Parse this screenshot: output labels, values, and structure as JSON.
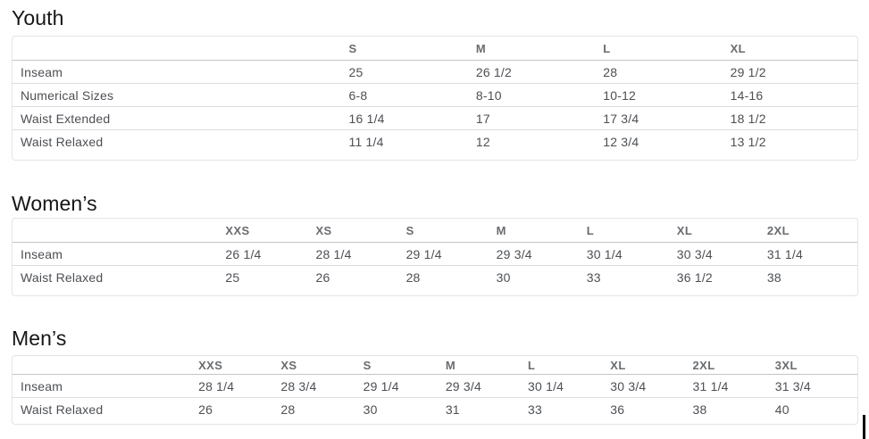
{
  "colors": {
    "heading_text": "#161616",
    "header_text": "#696c70",
    "cell_text": "#4c4f54",
    "table_border": "#e4e4e6",
    "row_divider": "#dcdcde"
  },
  "sections": [
    {
      "title": "Youth",
      "columns": [
        "S",
        "M",
        "L",
        "XL"
      ],
      "rows": [
        {
          "label": "Inseam",
          "values": [
            "25",
            "26 1/2",
            "28",
            "29 1/2"
          ]
        },
        {
          "label": "Numerical Sizes",
          "values": [
            "6-8",
            "8-10",
            "10-12",
            "14-16"
          ]
        },
        {
          "label": "Waist Extended",
          "values": [
            "16 1/4",
            "17",
            "17 3/4",
            "18 1/2"
          ]
        },
        {
          "label": "Waist Relaxed",
          "values": [
            "11 1/4",
            "12",
            "12 3/4",
            "13 1/2"
          ]
        }
      ]
    },
    {
      "title": "Women’s",
      "columns": [
        "XXS",
        "XS",
        "S",
        "M",
        "L",
        "XL",
        "2XL"
      ],
      "rows": [
        {
          "label": "Inseam",
          "values": [
            "26 1/4",
            "28 1/4",
            "29 1/4",
            "29 3/4",
            "30 1/4",
            "30 3/4",
            "31 1/4"
          ]
        },
        {
          "label": "Waist Relaxed",
          "values": [
            "25",
            "26",
            "28",
            "30",
            "33",
            "36 1/2",
            "38"
          ]
        }
      ]
    },
    {
      "title": "Men’s",
      "columns": [
        "XXS",
        "XS",
        "S",
        "M",
        "L",
        "XL",
        "2XL",
        "3XL"
      ],
      "rows": [
        {
          "label": "Inseam",
          "values": [
            "28 1/4",
            "28 3/4",
            "29 1/4",
            "29 3/4",
            "30 1/4",
            "30 3/4",
            "31 1/4",
            "31 3/4"
          ]
        },
        {
          "label": "Waist Relaxed",
          "values": [
            "26",
            "28",
            "30",
            "31",
            "33",
            "36",
            "38",
            "40"
          ]
        }
      ]
    }
  ]
}
